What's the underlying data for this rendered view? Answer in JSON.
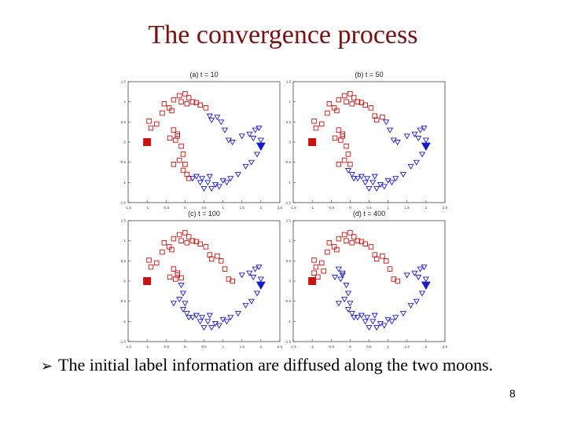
{
  "slide": {
    "title": "The convergence process",
    "bullet_icon": "arrow-bullet-icon",
    "bullet_text": "The initial label information are diffused along the two moons.",
    "page_number": "8"
  },
  "colors": {
    "class_red": "#cc1111",
    "class_blue": "#1a1acc",
    "title": "#7a1010"
  },
  "chart_data": [
    {
      "type": "scatter",
      "title": "(a) t = 10",
      "xlim": [
        -1.5,
        2.5
      ],
      "ylim": [
        -1.5,
        1.5
      ],
      "xticks": [
        "-1.5",
        "-1",
        "-0.5",
        "0",
        "0.5",
        "1",
        "1.5",
        "2",
        "2.5"
      ],
      "yticks": [
        "1.5",
        "1",
        "0.5",
        "0",
        "-0.5",
        "-1",
        "-1.5"
      ],
      "labeled": [
        {
          "x": -1.0,
          "y": 0.0,
          "class": "red"
        },
        {
          "x": 2.0,
          "y": -0.1,
          "class": "blue"
        }
      ],
      "red": [
        [
          -0.95,
          0.52
        ],
        [
          -0.9,
          0.35
        ],
        [
          -0.75,
          0.45
        ],
        [
          -0.6,
          0.72
        ],
        [
          -0.55,
          0.95
        ],
        [
          -0.42,
          0.85
        ],
        [
          -0.3,
          1.05
        ],
        [
          -0.15,
          1.15
        ],
        [
          0.0,
          1.2
        ],
        [
          0.1,
          1.1
        ],
        [
          0.2,
          1.0
        ],
        [
          0.3,
          0.98
        ],
        [
          0.4,
          0.92
        ],
        [
          0.55,
          0.85
        ],
        [
          -0.35,
          0.78
        ],
        [
          -0.1,
          1.0
        ],
        [
          0.05,
          0.95
        ],
        [
          -0.3,
          0.3
        ],
        [
          -0.2,
          0.2
        ],
        [
          -0.4,
          0.1
        ],
        [
          -0.25,
          0.05
        ],
        [
          -0.1,
          -0.1
        ],
        [
          -0.05,
          -0.3
        ],
        [
          0.0,
          -0.55
        ],
        [
          -0.05,
          -0.7
        ],
        [
          -0.15,
          -0.45
        ],
        [
          -0.3,
          -0.55
        ],
        [
          0.1,
          -0.9
        ],
        [
          0.05,
          -0.8
        ],
        [
          -0.2,
          0.15
        ]
      ],
      "blue": [
        [
          0.65,
          0.65
        ],
        [
          0.7,
          0.55
        ],
        [
          0.85,
          0.62
        ],
        [
          0.95,
          0.5
        ],
        [
          1.05,
          0.3
        ],
        [
          1.15,
          0.05
        ],
        [
          1.25,
          0.0
        ],
        [
          1.5,
          0.15
        ],
        [
          1.7,
          0.2
        ],
        [
          1.85,
          0.3
        ],
        [
          1.95,
          0.35
        ],
        [
          1.8,
          0.1
        ],
        [
          2.0,
          0.05
        ],
        [
          1.9,
          -0.3
        ],
        [
          1.75,
          -0.5
        ],
        [
          1.6,
          -0.6
        ],
        [
          1.4,
          -0.8
        ],
        [
          1.2,
          -0.9
        ],
        [
          1.0,
          -0.95
        ],
        [
          0.8,
          -1.05
        ],
        [
          0.6,
          -1.0
        ],
        [
          0.4,
          -1.0
        ],
        [
          0.3,
          -0.85
        ],
        [
          0.2,
          -0.9
        ],
        [
          0.5,
          -1.15
        ],
        [
          0.7,
          -1.15
        ],
        [
          0.9,
          -1.1
        ],
        [
          1.1,
          -1.0
        ],
        [
          0.45,
          -0.9
        ],
        [
          0.65,
          -0.85
        ]
      ]
    },
    {
      "type": "scatter",
      "title": "(b) t = 50",
      "xlim": [
        -1.5,
        2.5
      ],
      "ylim": [
        -1.5,
        1.5
      ],
      "xticks": [
        "-1.5",
        "-1",
        "-0.5",
        "0",
        "0.5",
        "1",
        "1.5",
        "2",
        "2.5"
      ],
      "yticks": [
        "1.5",
        "1",
        "0.5",
        "0",
        "-0.5",
        "-1",
        "-1.5"
      ],
      "labeled": [
        {
          "x": -1.0,
          "y": 0.0,
          "class": "red"
        },
        {
          "x": 2.0,
          "y": -0.1,
          "class": "blue"
        }
      ],
      "red": [
        [
          -0.95,
          0.52
        ],
        [
          -0.9,
          0.35
        ],
        [
          -0.75,
          0.45
        ],
        [
          -0.6,
          0.72
        ],
        [
          -0.55,
          0.95
        ],
        [
          -0.42,
          0.85
        ],
        [
          -0.3,
          1.05
        ],
        [
          -0.15,
          1.15
        ],
        [
          0.0,
          1.2
        ],
        [
          0.1,
          1.1
        ],
        [
          0.2,
          1.0
        ],
        [
          0.3,
          0.98
        ],
        [
          0.4,
          0.92
        ],
        [
          0.55,
          0.85
        ],
        [
          0.65,
          0.65
        ],
        [
          0.7,
          0.55
        ],
        [
          0.85,
          0.62
        ],
        [
          -0.35,
          0.78
        ],
        [
          -0.1,
          1.0
        ],
        [
          0.05,
          0.95
        ],
        [
          -0.3,
          0.3
        ],
        [
          -0.2,
          0.2
        ],
        [
          -0.4,
          0.1
        ],
        [
          -0.25,
          0.05
        ],
        [
          -0.1,
          -0.1
        ],
        [
          -0.05,
          -0.3
        ],
        [
          0.0,
          -0.55
        ],
        [
          -0.15,
          -0.45
        ],
        [
          -0.3,
          -0.55
        ],
        [
          -0.2,
          0.15
        ]
      ],
      "blue": [
        [
          0.95,
          0.5
        ],
        [
          1.05,
          0.3
        ],
        [
          1.15,
          0.05
        ],
        [
          1.25,
          0.0
        ],
        [
          1.5,
          0.15
        ],
        [
          1.7,
          0.2
        ],
        [
          1.85,
          0.3
        ],
        [
          1.95,
          0.35
        ],
        [
          1.8,
          0.1
        ],
        [
          2.0,
          0.05
        ],
        [
          1.9,
          -0.3
        ],
        [
          1.75,
          -0.5
        ],
        [
          1.6,
          -0.6
        ],
        [
          1.4,
          -0.8
        ],
        [
          1.2,
          -0.9
        ],
        [
          1.0,
          -0.95
        ],
        [
          0.8,
          -1.05
        ],
        [
          0.6,
          -1.0
        ],
        [
          0.4,
          -1.0
        ],
        [
          0.3,
          -0.85
        ],
        [
          0.2,
          -0.9
        ],
        [
          0.5,
          -1.15
        ],
        [
          0.7,
          -1.15
        ],
        [
          0.9,
          -1.1
        ],
        [
          1.1,
          -1.0
        ],
        [
          0.45,
          -0.9
        ],
        [
          0.65,
          -0.85
        ],
        [
          -0.05,
          -0.7
        ],
        [
          0.1,
          -0.9
        ],
        [
          0.05,
          -0.8
        ]
      ]
    },
    {
      "type": "scatter",
      "title": "(c) t = 100",
      "xlim": [
        -1.5,
        2.5
      ],
      "ylim": [
        -1.5,
        1.5
      ],
      "xticks": [
        "-1.5",
        "-1",
        "-0.5",
        "0",
        "0.5",
        "1",
        "1.5",
        "2",
        "2.5"
      ],
      "yticks": [
        "1.5",
        "1",
        "0.5",
        "0",
        "-0.5",
        "-1",
        "-1.5"
      ],
      "labeled": [
        {
          "x": -1.0,
          "y": 0.0,
          "class": "red"
        },
        {
          "x": 2.0,
          "y": -0.1,
          "class": "blue"
        }
      ],
      "red": [
        [
          -0.95,
          0.52
        ],
        [
          -0.9,
          0.35
        ],
        [
          -0.75,
          0.45
        ],
        [
          -0.6,
          0.72
        ],
        [
          -0.55,
          0.95
        ],
        [
          -0.42,
          0.85
        ],
        [
          -0.3,
          1.05
        ],
        [
          -0.15,
          1.15
        ],
        [
          0.0,
          1.2
        ],
        [
          0.1,
          1.1
        ],
        [
          0.2,
          1.0
        ],
        [
          0.3,
          0.98
        ],
        [
          0.4,
          0.92
        ],
        [
          0.55,
          0.85
        ],
        [
          0.65,
          0.65
        ],
        [
          0.7,
          0.55
        ],
        [
          0.85,
          0.62
        ],
        [
          0.95,
          0.5
        ],
        [
          1.05,
          0.3
        ],
        [
          1.15,
          0.05
        ],
        [
          1.25,
          0.0
        ],
        [
          -0.35,
          0.78
        ],
        [
          -0.1,
          1.0
        ],
        [
          0.05,
          0.95
        ],
        [
          -0.3,
          0.3
        ],
        [
          -0.2,
          0.2
        ],
        [
          -0.4,
          0.1
        ],
        [
          -0.25,
          0.05
        ],
        [
          -0.2,
          0.15
        ],
        [
          -0.1,
          0.08
        ]
      ],
      "blue": [
        [
          1.5,
          0.15
        ],
        [
          1.7,
          0.2
        ],
        [
          1.85,
          0.3
        ],
        [
          1.95,
          0.35
        ],
        [
          1.8,
          0.1
        ],
        [
          2.0,
          0.05
        ],
        [
          1.9,
          -0.3
        ],
        [
          1.75,
          -0.5
        ],
        [
          1.6,
          -0.6
        ],
        [
          1.4,
          -0.8
        ],
        [
          1.2,
          -0.9
        ],
        [
          1.0,
          -0.95
        ],
        [
          0.8,
          -1.05
        ],
        [
          0.6,
          -1.0
        ],
        [
          0.4,
          -1.0
        ],
        [
          0.3,
          -0.85
        ],
        [
          0.2,
          -0.9
        ],
        [
          0.5,
          -1.15
        ],
        [
          0.7,
          -1.15
        ],
        [
          0.9,
          -1.1
        ],
        [
          1.1,
          -1.0
        ],
        [
          0.45,
          -0.9
        ],
        [
          0.65,
          -0.85
        ],
        [
          -0.05,
          -0.7
        ],
        [
          0.1,
          -0.9
        ],
        [
          0.05,
          -0.8
        ],
        [
          -0.1,
          -0.1
        ],
        [
          -0.05,
          -0.3
        ],
        [
          0.0,
          -0.55
        ],
        [
          -0.15,
          -0.45
        ],
        [
          -0.3,
          -0.55
        ]
      ]
    },
    {
      "type": "scatter",
      "title": "(d) t = 400",
      "xlim": [
        -1.5,
        2.5
      ],
      "ylim": [
        -1.5,
        1.5
      ],
      "xticks": [
        "-1.5",
        "-1",
        "-0.5",
        "0",
        "0.5",
        "1",
        "1.5",
        "2",
        "2.5"
      ],
      "yticks": [
        "1.5",
        "1",
        "0.5",
        "0",
        "-0.5",
        "-1",
        "-1.5"
      ],
      "labeled": [
        {
          "x": -1.0,
          "y": 0.0,
          "class": "red"
        },
        {
          "x": 2.0,
          "y": -0.1,
          "class": "blue"
        }
      ],
      "red": [
        [
          -0.95,
          0.52
        ],
        [
          -0.9,
          0.35
        ],
        [
          -0.75,
          0.45
        ],
        [
          -0.6,
          0.72
        ],
        [
          -0.55,
          0.95
        ],
        [
          -0.42,
          0.85
        ],
        [
          -0.3,
          1.05
        ],
        [
          -0.15,
          1.15
        ],
        [
          0.0,
          1.2
        ],
        [
          0.1,
          1.1
        ],
        [
          0.2,
          1.0
        ],
        [
          0.3,
          0.98
        ],
        [
          0.4,
          0.92
        ],
        [
          0.55,
          0.85
        ],
        [
          0.65,
          0.65
        ],
        [
          0.7,
          0.55
        ],
        [
          0.85,
          0.62
        ],
        [
          0.95,
          0.5
        ],
        [
          1.05,
          0.3
        ],
        [
          1.15,
          0.05
        ],
        [
          1.25,
          0.0
        ],
        [
          -0.35,
          0.78
        ],
        [
          -0.1,
          1.0
        ],
        [
          0.05,
          0.95
        ],
        [
          -0.95,
          0.2
        ],
        [
          -0.85,
          0.1
        ],
        [
          -0.7,
          0.25
        ]
      ],
      "blue": [
        [
          1.5,
          0.15
        ],
        [
          1.7,
          0.2
        ],
        [
          1.85,
          0.3
        ],
        [
          1.95,
          0.35
        ],
        [
          1.8,
          0.1
        ],
        [
          2.0,
          0.05
        ],
        [
          1.9,
          -0.3
        ],
        [
          1.75,
          -0.5
        ],
        [
          1.6,
          -0.6
        ],
        [
          1.4,
          -0.8
        ],
        [
          1.2,
          -0.9
        ],
        [
          1.0,
          -0.95
        ],
        [
          0.8,
          -1.05
        ],
        [
          0.6,
          -1.0
        ],
        [
          0.4,
          -1.0
        ],
        [
          0.3,
          -0.85
        ],
        [
          0.2,
          -0.9
        ],
        [
          0.5,
          -1.15
        ],
        [
          0.7,
          -1.15
        ],
        [
          0.9,
          -1.1
        ],
        [
          1.1,
          -1.0
        ],
        [
          0.45,
          -0.9
        ],
        [
          0.65,
          -0.85
        ],
        [
          -0.05,
          -0.7
        ],
        [
          0.1,
          -0.9
        ],
        [
          0.05,
          -0.8
        ],
        [
          -0.1,
          -0.1
        ],
        [
          -0.05,
          -0.3
        ],
        [
          0.0,
          -0.55
        ],
        [
          -0.15,
          -0.45
        ],
        [
          -0.3,
          -0.55
        ],
        [
          -0.3,
          0.3
        ],
        [
          -0.2,
          0.2
        ],
        [
          -0.4,
          0.1
        ],
        [
          -0.25,
          0.05
        ],
        [
          -0.2,
          0.15
        ]
      ]
    }
  ]
}
